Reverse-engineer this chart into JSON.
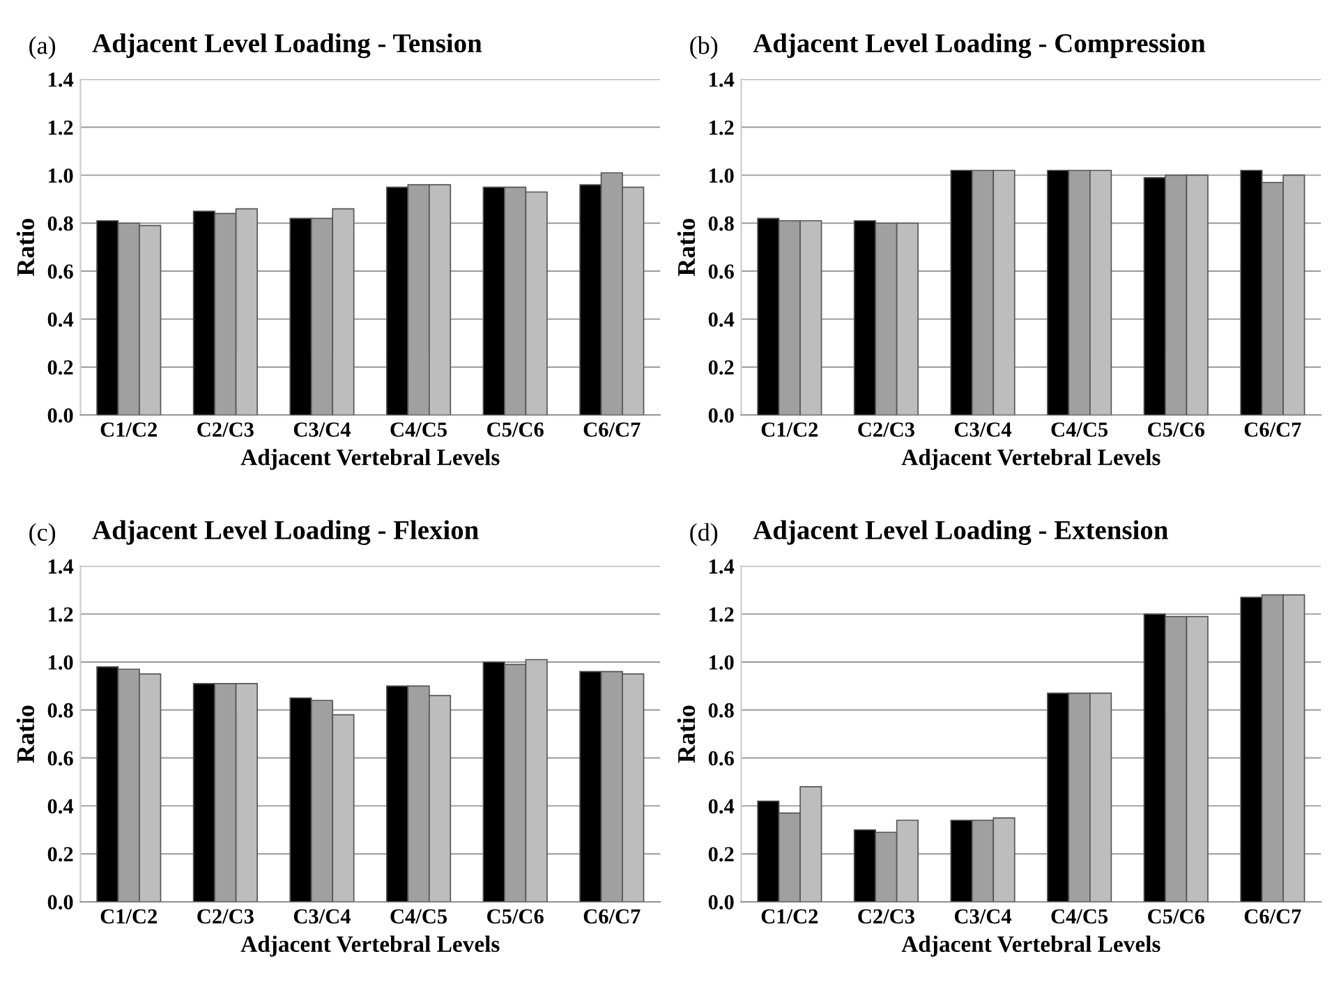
{
  "chart_data": [
    {
      "type": "bar",
      "title": "Adjacent Level Loading - Tension",
      "annotations": [
        "(a)"
      ],
      "xlabel": "Adjacent Vertebral Levels",
      "ylabel": "Ratio",
      "categories": [
        "C1/C2",
        "C2/C3",
        "C3/C4",
        "C4/C5",
        "C5/C6",
        "C6/C7"
      ],
      "ylim": [
        0,
        1.4
      ],
      "yticks": [
        {
          "value": 0,
          "label": "0.0"
        },
        {
          "value": 0.2,
          "label": "0.2"
        },
        {
          "value": 0.4,
          "label": "0.4"
        },
        {
          "value": 0.6,
          "label": "0.6"
        },
        {
          "value": 0.8,
          "label": "0.8"
        },
        {
          "value": 1.0,
          "label": "1.0"
        },
        {
          "value": 1.2,
          "label": "1.2"
        },
        {
          "value": 1.4,
          "label": "1.4"
        }
      ],
      "grid": "y",
      "series": [
        {
          "color": "#000000",
          "values": [
            0.81,
            0.85,
            0.82,
            0.95,
            0.95,
            0.96
          ]
        },
        {
          "color": "#a0a0a0",
          "values": [
            0.8,
            0.84,
            0.82,
            0.96,
            0.95,
            1.01
          ]
        },
        {
          "color": "#bdbdbd",
          "values": [
            0.79,
            0.86,
            0.86,
            0.96,
            0.93,
            0.95
          ]
        }
      ]
    },
    {
      "type": "bar",
      "title": "Adjacent Level Loading - Compression",
      "annotations": [
        "(b)"
      ],
      "xlabel": "Adjacent Vertebral Levels",
      "ylabel": "Ratio",
      "categories": [
        "C1/C2",
        "C2/C3",
        "C3/C4",
        "C4/C5",
        "C5/C6",
        "C6/C7"
      ],
      "ylim": [
        0,
        1.4
      ],
      "yticks": [
        {
          "value": 0,
          "label": "0.0"
        },
        {
          "value": 0.2,
          "label": "0.2"
        },
        {
          "value": 0.4,
          "label": "0.4"
        },
        {
          "value": 0.6,
          "label": "0.6"
        },
        {
          "value": 0.8,
          "label": "0.8"
        },
        {
          "value": 1.0,
          "label": "1.0"
        },
        {
          "value": 1.2,
          "label": "1.2"
        },
        {
          "value": 1.4,
          "label": "1.4"
        }
      ],
      "grid": "y",
      "series": [
        {
          "color": "#000000",
          "values": [
            0.82,
            0.81,
            1.02,
            1.02,
            0.99,
            1.02
          ]
        },
        {
          "color": "#a0a0a0",
          "values": [
            0.81,
            0.8,
            1.02,
            1.02,
            1.0,
            0.97
          ]
        },
        {
          "color": "#bdbdbd",
          "values": [
            0.81,
            0.8,
            1.02,
            1.02,
            1.0,
            1.0
          ]
        }
      ]
    },
    {
      "type": "bar",
      "title": "Adjacent Level Loading - Flexion",
      "annotations": [
        "(c)"
      ],
      "xlabel": "Adjacent Vertebral Levels",
      "ylabel": "Ratio",
      "categories": [
        "C1/C2",
        "C2/C3",
        "C3/C4",
        "C4/C5",
        "C5/C6",
        "C6/C7"
      ],
      "ylim": [
        0,
        1.4
      ],
      "yticks": [
        {
          "value": 0,
          "label": "0.0"
        },
        {
          "value": 0.2,
          "label": "0.2"
        },
        {
          "value": 0.4,
          "label": "0.4"
        },
        {
          "value": 0.6,
          "label": "0.6"
        },
        {
          "value": 0.8,
          "label": "0.8"
        },
        {
          "value": 1.0,
          "label": "1.0"
        },
        {
          "value": 1.2,
          "label": "1.2"
        },
        {
          "value": 1.4,
          "label": "1.4"
        }
      ],
      "grid": "y",
      "series": [
        {
          "color": "#000000",
          "values": [
            0.98,
            0.91,
            0.85,
            0.9,
            1.0,
            0.96
          ]
        },
        {
          "color": "#a0a0a0",
          "values": [
            0.97,
            0.91,
            0.84,
            0.9,
            0.99,
            0.96
          ]
        },
        {
          "color": "#bdbdbd",
          "values": [
            0.95,
            0.91,
            0.78,
            0.86,
            1.01,
            0.95
          ]
        }
      ]
    },
    {
      "type": "bar",
      "title": "Adjacent Level Loading - Extension",
      "annotations": [
        "(d)"
      ],
      "xlabel": "Adjacent Vertebral Levels",
      "ylabel": "Ratio",
      "categories": [
        "C1/C2",
        "C2/C3",
        "C3/C4",
        "C4/C5",
        "C5/C6",
        "C6/C7"
      ],
      "ylim": [
        0,
        1.4
      ],
      "yticks": [
        {
          "value": 0,
          "label": "0.0"
        },
        {
          "value": 0.2,
          "label": "0.2"
        },
        {
          "value": 0.4,
          "label": "0.4"
        },
        {
          "value": 0.6,
          "label": "0.6"
        },
        {
          "value": 0.8,
          "label": "0.8"
        },
        {
          "value": 1.0,
          "label": "1.0"
        },
        {
          "value": 1.2,
          "label": "1.2"
        },
        {
          "value": 1.4,
          "label": "1.4"
        }
      ],
      "grid": "y",
      "series": [
        {
          "color": "#000000",
          "values": [
            0.42,
            0.3,
            0.34,
            0.87,
            1.2,
            1.27
          ]
        },
        {
          "color": "#a0a0a0",
          "values": [
            0.37,
            0.29,
            0.34,
            0.87,
            1.19,
            1.28
          ]
        },
        {
          "color": "#bdbdbd",
          "values": [
            0.48,
            0.34,
            0.35,
            0.87,
            1.19,
            1.28
          ]
        }
      ]
    }
  ]
}
